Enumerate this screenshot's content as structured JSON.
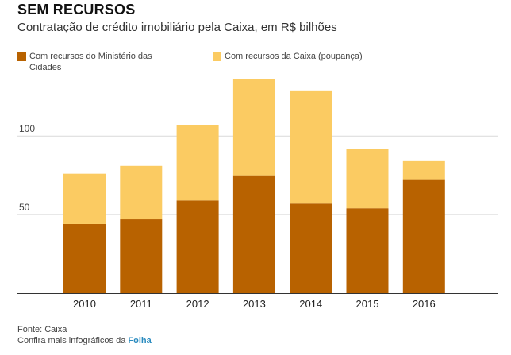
{
  "header": {
    "title": "SEM RECURSOS",
    "subtitle": "Contratação de crédito imobiliário pela Caixa, em R$ bilhões"
  },
  "colors": {
    "ministerio": "#b86200",
    "caixa": "#fbcb62",
    "gridline": "#d9d9d9",
    "axis": "#333333",
    "brand_link": "#2a8bbf"
  },
  "chart_data": {
    "type": "bar",
    "stacked": true,
    "categories": [
      "2010",
      "2011",
      "2012",
      "2013",
      "2014",
      "2015",
      "2016"
    ],
    "series": [
      {
        "name": "Com recursos do Ministério das Cidades",
        "values": [
          44,
          47,
          59,
          75,
          57,
          54,
          72
        ]
      },
      {
        "name": "Com recursos da Caixa (poupança)",
        "values": [
          32,
          34,
          48,
          61,
          72,
          38,
          12
        ]
      }
    ],
    "ylim": [
      0,
      136
    ],
    "yticks": [
      "50",
      "100"
    ],
    "grid": true,
    "legend_position": "top-left"
  },
  "legend": {
    "items": [
      {
        "label": "Com recursos do Ministério das Cidades"
      },
      {
        "label": "Com recursos da Caixa (poupança)"
      }
    ]
  },
  "footer": {
    "source": "Fonte: Caixa",
    "more_prefix": "Confira mais infográficos da ",
    "brand": "Folha"
  }
}
